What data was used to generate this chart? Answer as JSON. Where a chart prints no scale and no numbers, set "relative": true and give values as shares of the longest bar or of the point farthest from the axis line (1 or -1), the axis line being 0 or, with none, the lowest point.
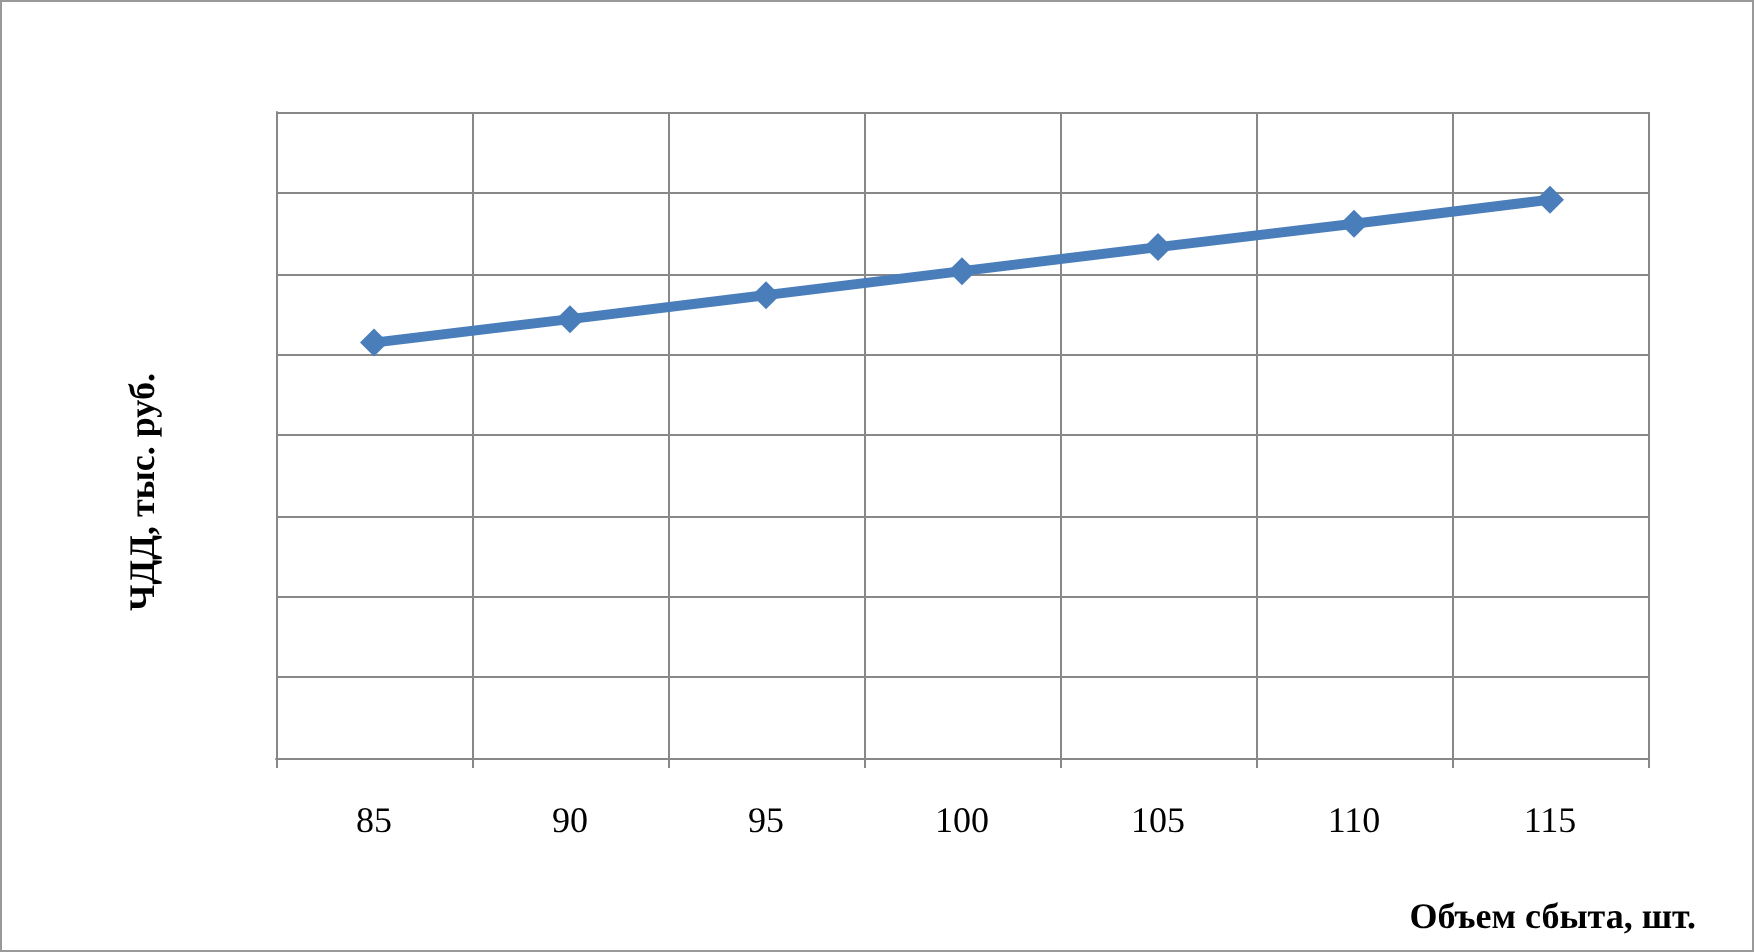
{
  "chart_data": {
    "type": "line",
    "relative": true,
    "xlabel": "Объем сбыта, шт.",
    "ylabel": "ЧДД, тыс. руб.",
    "categories": [
      "85",
      "90",
      "95",
      "100",
      "105",
      "110",
      "115"
    ],
    "series": [
      {
        "color": "#4a7ebb",
        "values": [
          0.744,
          0.786,
          0.829,
          0.872,
          0.915,
          0.957,
          1
        ]
      }
    ],
    "grid": true,
    "marker": "diamond",
    "line_style": "solid"
  }
}
